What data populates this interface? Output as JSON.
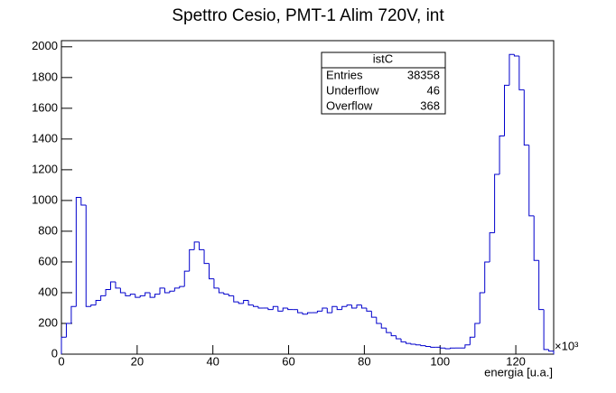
{
  "chart_data": {
    "type": "histogram",
    "title": "Spettro Cesio, PMT-1 Alim 720V, int",
    "x_label": "energia [u.a.]",
    "x_exponent_label": "×10³",
    "color": "#0000cc",
    "bins": [
      0,
      1.3,
      2.6,
      3.9,
      5.2,
      6.5,
      7.8,
      9.1,
      10.4,
      11.7,
      13,
      14.3,
      15.6,
      16.9,
      18.2,
      19.5,
      20.8,
      22.1,
      23.4,
      24.7,
      26,
      27.3,
      28.6,
      29.9,
      31.2,
      32.5,
      33.8,
      35.1,
      36.4,
      37.7,
      39,
      40.3,
      41.6,
      42.9,
      44.2,
      45.5,
      46.8,
      48.1,
      49.4,
      50.7,
      52,
      53.3,
      54.6,
      55.9,
      57.2,
      58.5,
      59.8,
      61.1,
      62.4,
      63.7,
      65,
      66.3,
      67.6,
      68.9,
      70.2,
      71.5,
      72.8,
      74.1,
      75.4,
      76.7,
      78,
      79.3,
      80.6,
      81.9,
      83.2,
      84.5,
      85.8,
      87.1,
      88.4,
      89.7,
      91,
      92.3,
      93.6,
      94.9,
      96.2,
      97.5,
      98.8,
      100.1,
      101.4,
      102.7,
      104,
      105.3,
      106.6,
      107.9,
      109.2,
      110.5,
      111.8,
      113.1,
      114.4,
      115.7,
      117,
      118.3,
      119.6,
      120.9,
      122.2,
      123.5,
      124.8,
      126.1,
      127.4,
      128.7,
      130
    ],
    "values": [
      110,
      200,
      310,
      1020,
      970,
      310,
      320,
      350,
      380,
      420,
      470,
      430,
      400,
      380,
      390,
      370,
      380,
      400,
      370,
      390,
      430,
      400,
      410,
      430,
      440,
      540,
      680,
      730,
      680,
      590,
      490,
      430,
      400,
      390,
      380,
      340,
      330,
      350,
      320,
      310,
      300,
      300,
      290,
      310,
      280,
      300,
      290,
      290,
      270,
      260,
      270,
      270,
      280,
      300,
      270,
      310,
      290,
      310,
      320,
      300,
      320,
      300,
      280,
      240,
      200,
      170,
      140,
      120,
      100,
      80,
      70,
      65,
      60,
      55,
      50,
      45,
      45,
      40,
      35,
      40,
      40,
      40,
      60,
      110,
      200,
      400,
      600,
      790,
      1170,
      1420,
      1750,
      1950,
      1940,
      1720,
      1360,
      900,
      610,
      290,
      30,
      20
    ],
    "xlim": [
      0,
      130
    ],
    "xticks": [
      0,
      20,
      40,
      60,
      80,
      100,
      120
    ],
    "ylim": [
      0,
      2040
    ],
    "yticks": [
      0,
      200,
      400,
      600,
      800,
      1000,
      1200,
      1400,
      1600,
      1800,
      2000
    ],
    "stats": {
      "title": "istC",
      "rows": [
        [
          "Entries",
          "38358"
        ],
        [
          "Underflow",
          "46"
        ],
        [
          "Overflow",
          "368"
        ]
      ]
    }
  }
}
